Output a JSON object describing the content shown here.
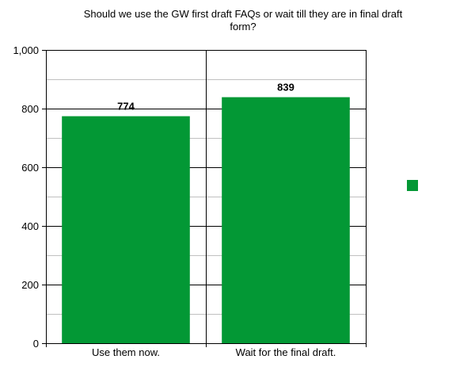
{
  "chart_data": {
    "type": "bar",
    "title_lines": [
      "Should we use the GW first draft FAQs or wait till they are in final draft",
      "form?"
    ],
    "categories": [
      "Use them now.",
      "Wait for the final draft."
    ],
    "values": [
      774,
      839
    ],
    "data_labels": [
      "774",
      "839"
    ],
    "ylim": [
      0,
      1000
    ],
    "y_ticks": [
      0,
      200,
      400,
      600,
      800,
      1000
    ],
    "y_tick_labels": [
      "0",
      "200",
      "400",
      "600",
      "800",
      "1,000"
    ],
    "y_minor_step": 100,
    "grid": true,
    "legend": "right",
    "colors": {
      "bar": "#039835",
      "major_grid": "#000000",
      "minor_grid": "#c0c0c0",
      "axis": "#000000"
    }
  }
}
